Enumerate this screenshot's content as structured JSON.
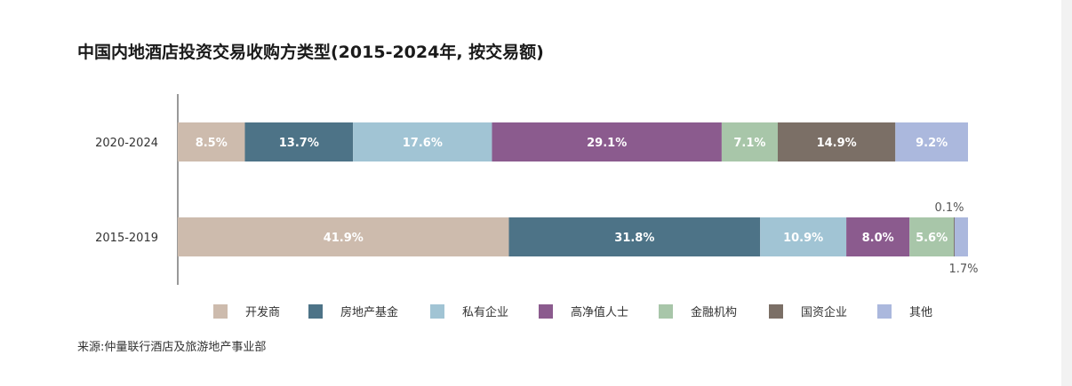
{
  "chart_data": {
    "type": "bar",
    "orientation": "horizontal",
    "stacked": true,
    "title": "中国内地酒店投资交易收购方类型(2015-2024年, 按交易额)",
    "source": "来源:仲量联行酒店及旅游地产事业部",
    "categories": [
      "2020-2024",
      "2015-2019"
    ],
    "xlim": [
      0,
      100
    ],
    "grid": false,
    "legend_position": "bottom",
    "series": [
      {
        "name": "开发商",
        "color": "#cdbbad",
        "values": [
          8.5,
          41.9
        ],
        "labels": [
          "8.5%",
          "41.9%"
        ]
      },
      {
        "name": "房地产基金",
        "color": "#4d7387",
        "values": [
          13.7,
          31.8
        ],
        "labels": [
          "13.7%",
          "31.8%"
        ]
      },
      {
        "name": "私有企业",
        "color": "#a1c4d4",
        "values": [
          17.6,
          10.9
        ],
        "labels": [
          "17.6%",
          "10.9%"
        ]
      },
      {
        "name": "高净值人士",
        "color": "#8b5b8e",
        "values": [
          29.1,
          8.0
        ],
        "labels": [
          "29.1%",
          "8.0%"
        ]
      },
      {
        "name": "金融机构",
        "color": "#a8c6a9",
        "values": [
          7.1,
          5.6
        ],
        "labels": [
          "7.1%",
          "5.6%"
        ]
      },
      {
        "name": "国资企业",
        "color": "#7b6f66",
        "values": [
          14.9,
          0.1
        ],
        "labels": [
          "14.9%",
          "0.1%"
        ]
      },
      {
        "name": "其他",
        "color": "#abb8dd",
        "values": [
          9.2,
          1.7
        ],
        "labels": [
          "9.2%",
          "1.7%"
        ]
      }
    ]
  }
}
